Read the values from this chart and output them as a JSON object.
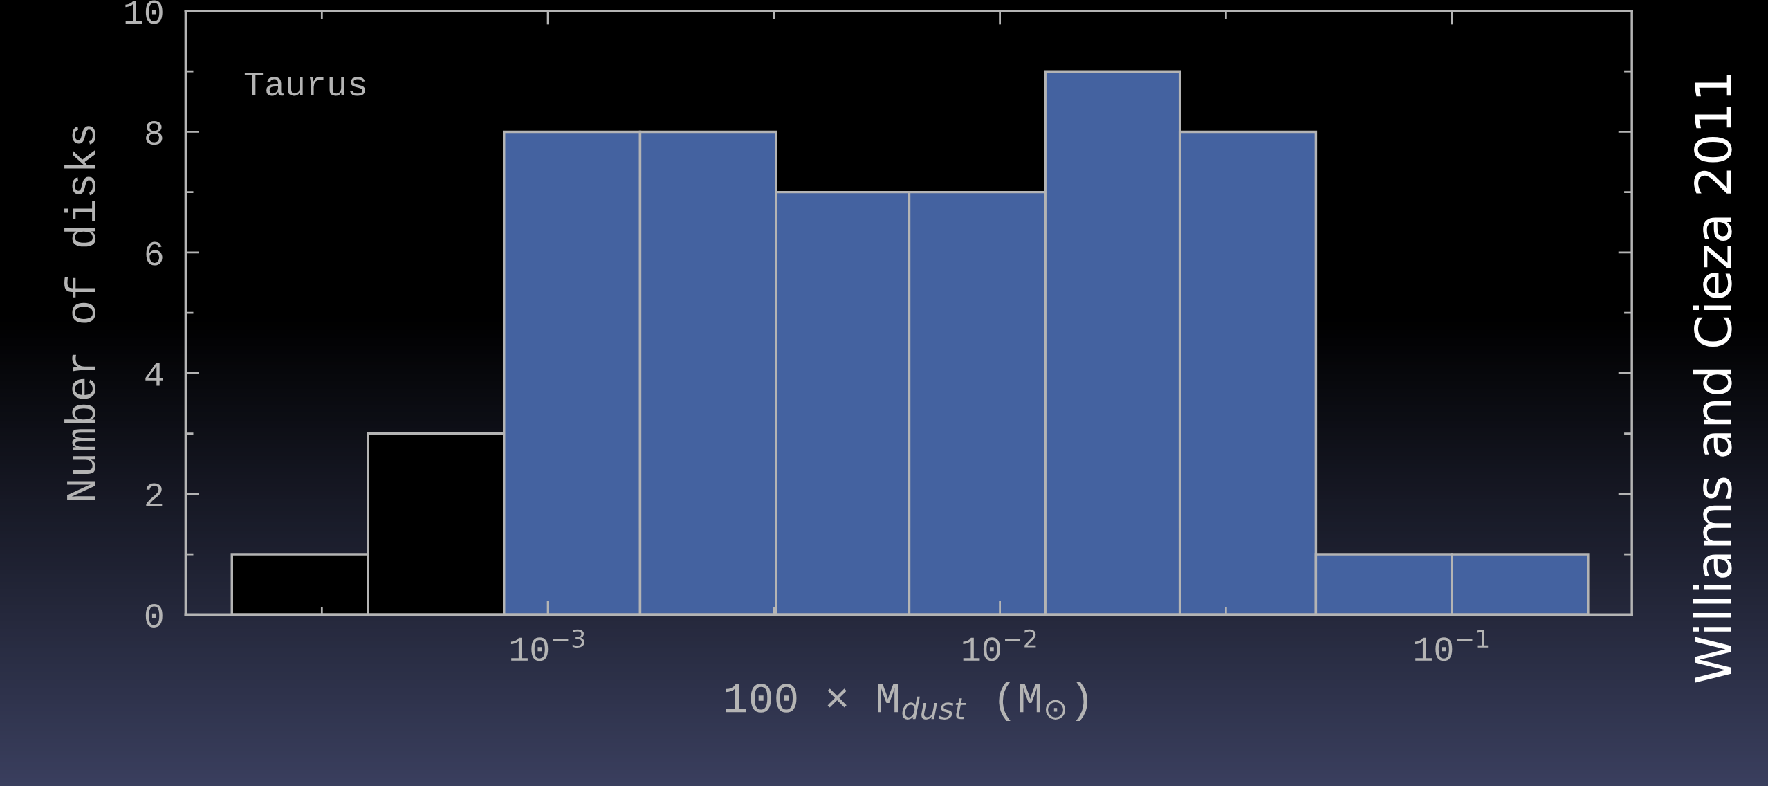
{
  "chart_data": {
    "type": "histogram",
    "bins": [
      0.0002,
      0.0004,
      0.0008,
      0.0016,
      0.0032,
      0.0063,
      0.0126,
      0.025,
      0.05,
      0.1,
      0.2
    ],
    "values": [
      1,
      3,
      8,
      8,
      7,
      7,
      9,
      8,
      1,
      1
    ],
    "colors": [
      "#000000",
      "#000000",
      "#4462a0",
      "#4462a0",
      "#4462a0",
      "#4462a0",
      "#4462a0",
      "#4462a0",
      "#4462a0",
      "#4462a0"
    ],
    "log": "x",
    "xlim": [
      0.000158,
      0.25
    ],
    "xticks": [
      {
        "value": 0.001,
        "label": "10$^{−3}$"
      },
      {
        "value": 0.01,
        "label": "10$^{−2}$"
      },
      {
        "value": 0.1,
        "label": "10$^{−1}$"
      }
    ],
    "ylim": [
      0,
      10
    ],
    "yticks": [
      0,
      2,
      4,
      6,
      8,
      10
    ],
    "xlabel": "100 × M$_{dust}$ (M$_{⊙}$)",
    "ylabel": "Number of disks",
    "annotations": [
      "Taurus",
      "Williams and Cieza 2011"
    ],
    "grid": false
  }
}
